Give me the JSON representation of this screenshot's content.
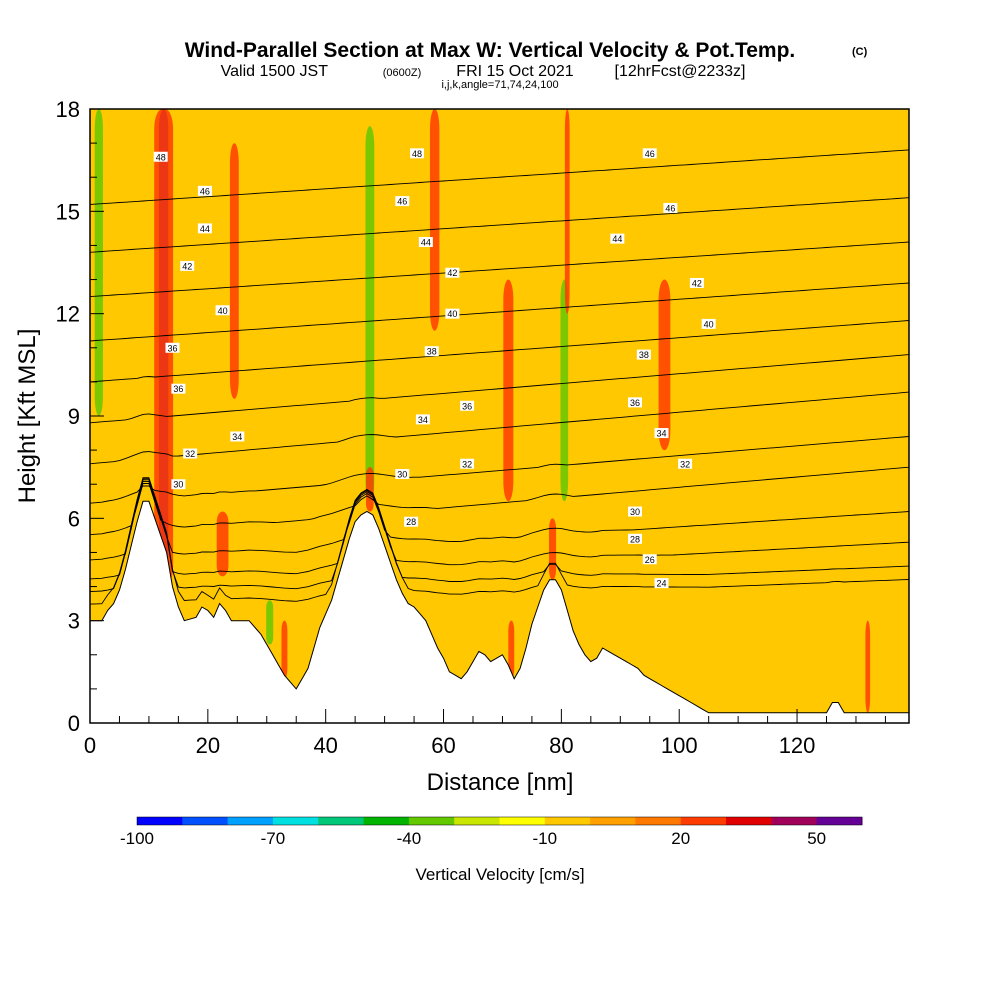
{
  "header": {
    "title": "Wind-Parallel Section at Max W: Vertical Velocity & Pot.Temp.",
    "title_mark": "(C)",
    "valid_prefix": "Valid 1500 JST",
    "valid_utc": "(0600Z)",
    "valid_date": "FRI 15 Oct 2021",
    "forecast": "[12hrFcst@2233z]",
    "params": "i,j,k,angle=71,74,24,100"
  },
  "chart_data": {
    "type": "heatmap",
    "title": "Wind-Parallel Section at Max W: Vertical Velocity & Pot.Temp.",
    "xlabel": "Distance [nm]",
    "ylabel": "Height [Kft MSL]",
    "xlim": [
      0,
      139
    ],
    "ylim": [
      0,
      18
    ],
    "x_ticks": [
      "0",
      "20",
      "40",
      "60",
      "80",
      "100",
      "120"
    ],
    "y_ticks": [
      "0",
      "3",
      "6",
      "9",
      "12",
      "15",
      "18"
    ],
    "grid": false,
    "colorbar": {
      "label": "Vertical Velocity [cm/s]",
      "tick_labels": [
        "-100",
        "-70",
        "-40",
        "-10",
        "20",
        "50"
      ],
      "tick_values": [
        -100,
        -70,
        -40,
        -10,
        20,
        50
      ],
      "min": -100,
      "step": 10,
      "colors": [
        "#0000ff",
        "#0050ff",
        "#00a0ff",
        "#00e0e0",
        "#00c878",
        "#00b400",
        "#64c800",
        "#c8e600",
        "#ffff00",
        "#ffc800",
        "#ffa000",
        "#ff7800",
        "#ff3c00",
        "#e10000",
        "#a0005a",
        "#640096"
      ]
    },
    "terrain_kft": [
      [
        0,
        3.0
      ],
      [
        2,
        3.0
      ],
      [
        3,
        3.3
      ],
      [
        4,
        3.5
      ],
      [
        5,
        3.9
      ],
      [
        6,
        4.5
      ],
      [
        7,
        5.2
      ],
      [
        8,
        5.9
      ],
      [
        9,
        6.5
      ],
      [
        10,
        6.5
      ],
      [
        11,
        6.0
      ],
      [
        12,
        5.5
      ],
      [
        13,
        5.0
      ],
      [
        14,
        4.0
      ],
      [
        15,
        3.4
      ],
      [
        16,
        3.0
      ],
      [
        18,
        3.1
      ],
      [
        19,
        3.4
      ],
      [
        20,
        3.3
      ],
      [
        21,
        3.1
      ],
      [
        22,
        3.5
      ],
      [
        23,
        3.3
      ],
      [
        24,
        3.0
      ],
      [
        27,
        3.0
      ],
      [
        28,
        2.8
      ],
      [
        29,
        2.6
      ],
      [
        30,
        2.3
      ],
      [
        31,
        2.0
      ],
      [
        32,
        1.7
      ],
      [
        33,
        1.4
      ],
      [
        34,
        1.2
      ],
      [
        35,
        1.0
      ],
      [
        36,
        1.3
      ],
      [
        37,
        1.6
      ],
      [
        38,
        2.2
      ],
      [
        39,
        2.8
      ],
      [
        40,
        3.2
      ],
      [
        41,
        3.6
      ],
      [
        42,
        4.2
      ],
      [
        43,
        4.8
      ],
      [
        44,
        5.4
      ],
      [
        45,
        5.9
      ],
      [
        46,
        6.1
      ],
      [
        47,
        6.2
      ],
      [
        48,
        6.1
      ],
      [
        49,
        5.7
      ],
      [
        50,
        5.2
      ],
      [
        51,
        4.7
      ],
      [
        52,
        4.2
      ],
      [
        53,
        3.8
      ],
      [
        54,
        3.5
      ],
      [
        55,
        3.4
      ],
      [
        56,
        3.2
      ],
      [
        57,
        3.0
      ],
      [
        58,
        2.6
      ],
      [
        59,
        2.2
      ],
      [
        60,
        1.9
      ],
      [
        61,
        1.5
      ],
      [
        62,
        1.4
      ],
      [
        63,
        1.3
      ],
      [
        64,
        1.5
      ],
      [
        65,
        1.8
      ],
      [
        66,
        2.1
      ],
      [
        67,
        2.0
      ],
      [
        68,
        1.8
      ],
      [
        69,
        1.9
      ],
      [
        70,
        2.0
      ],
      [
        71,
        1.7
      ],
      [
        72,
        1.3
      ],
      [
        73,
        1.6
      ],
      [
        74,
        2.2
      ],
      [
        75,
        2.9
      ],
      [
        76,
        3.4
      ],
      [
        77,
        3.9
      ],
      [
        78,
        4.2
      ],
      [
        79,
        4.2
      ],
      [
        80,
        3.9
      ],
      [
        81,
        3.3
      ],
      [
        82,
        2.7
      ],
      [
        83,
        2.3
      ],
      [
        84,
        2.0
      ],
      [
        85,
        1.8
      ],
      [
        86,
        1.9
      ],
      [
        87,
        2.2
      ],
      [
        88,
        2.1
      ],
      [
        89,
        2.0
      ],
      [
        90,
        1.9
      ],
      [
        91,
        1.8
      ],
      [
        92,
        1.7
      ],
      [
        93,
        1.6
      ],
      [
        94,
        1.4
      ],
      [
        95,
        1.3
      ],
      [
        96,
        1.2
      ],
      [
        97,
        1.1
      ],
      [
        98,
        1.0
      ],
      [
        99,
        0.9
      ],
      [
        100,
        0.8
      ],
      [
        101,
        0.7
      ],
      [
        102,
        0.6
      ],
      [
        103,
        0.5
      ],
      [
        104,
        0.4
      ],
      [
        105,
        0.3
      ],
      [
        125,
        0.3
      ],
      [
        126,
        0.6
      ],
      [
        127,
        0.6
      ],
      [
        128,
        0.3
      ],
      [
        139,
        0.3
      ]
    ],
    "velocity_features": [
      {
        "x": 12.5,
        "w": 1.6,
        "y0": 4.5,
        "y1": 18,
        "v": 50
      },
      {
        "x": 12.5,
        "w": 3.2,
        "y0": 4.0,
        "y1": 18,
        "v": 20
      },
      {
        "x": 24.5,
        "w": 1.5,
        "y0": 9.5,
        "y1": 17.0,
        "v": 20
      },
      {
        "x": 22.5,
        "w": 2.0,
        "y0": 4.3,
        "y1": 6.2,
        "v": 20
      },
      {
        "x": 1.5,
        "w": 1.4,
        "y0": 9.0,
        "y1": 18,
        "v": -40
      },
      {
        "x": 3.5,
        "w": 1.0,
        "y0": 6.0,
        "y1": 18,
        "v": -10
      },
      {
        "x": 30.5,
        "w": 1.2,
        "y0": 2.3,
        "y1": 3.6,
        "v": -40
      },
      {
        "x": 33.0,
        "w": 1.0,
        "y0": 1.3,
        "y1": 3.0,
        "v": 20
      },
      {
        "x": 47.5,
        "w": 1.5,
        "y0": 6.5,
        "y1": 17.5,
        "v": -40
      },
      {
        "x": 47.5,
        "w": 1.3,
        "y0": 6.2,
        "y1": 7.5,
        "v": 20
      },
      {
        "x": 58.5,
        "w": 1.6,
        "y0": 11.5,
        "y1": 18,
        "v": 20
      },
      {
        "x": 71.0,
        "w": 1.7,
        "y0": 6.5,
        "y1": 13.0,
        "v": 20
      },
      {
        "x": 71.5,
        "w": 1.0,
        "y0": 1.3,
        "y1": 3.0,
        "v": 20
      },
      {
        "x": 75.5,
        "w": 1.0,
        "y0": 12.0,
        "y1": 18,
        "v": -10
      },
      {
        "x": 80.5,
        "w": 1.3,
        "y0": 6.5,
        "y1": 13.0,
        "v": -40
      },
      {
        "x": 78.5,
        "w": 1.2,
        "y0": 4.2,
        "y1": 6.0,
        "v": 20
      },
      {
        "x": 81.0,
        "w": 0.8,
        "y0": 12.0,
        "y1": 18,
        "v": 20
      },
      {
        "x": 97.5,
        "w": 2.0,
        "y0": 8.0,
        "y1": 13.0,
        "v": 20
      },
      {
        "x": 132.0,
        "w": 0.8,
        "y0": 0.3,
        "y1": 3.0,
        "v": 20
      }
    ],
    "theta_isolines": [
      {
        "level": 24,
        "y_start": 3.2,
        "y_end": 4.2
      },
      {
        "level": 26,
        "y_start": 3.6,
        "y_end": 4.6
      },
      {
        "level": 28,
        "y_start": 4.0,
        "y_end": 5.3
      },
      {
        "level": 30,
        "y_start": 4.6,
        "y_end": 6.2
      },
      {
        "level": 32,
        "y_start": 5.4,
        "y_end": 7.5
      },
      {
        "level": 34,
        "y_start": 6.4,
        "y_end": 8.4
      },
      {
        "level": 36,
        "y_start": 7.6,
        "y_end": 9.7
      },
      {
        "level": 38,
        "y_start": 8.8,
        "y_end": 10.8
      },
      {
        "level": 40,
        "y_start": 10.0,
        "y_end": 11.8
      },
      {
        "level": 42,
        "y_start": 11.2,
        "y_end": 12.9
      },
      {
        "level": 44,
        "y_start": 12.5,
        "y_end": 14.1
      },
      {
        "level": 46,
        "y_start": 13.8,
        "y_end": 15.4
      },
      {
        "level": 48,
        "y_start": 15.2,
        "y_end": 16.8
      }
    ],
    "theta_labels": [
      {
        "text": "48",
        "x": 12,
        "y": 16.6
      },
      {
        "text": "46",
        "x": 19.5,
        "y": 15.6
      },
      {
        "text": "44",
        "x": 19.5,
        "y": 14.5
      },
      {
        "text": "42",
        "x": 16.5,
        "y": 13.4
      },
      {
        "text": "40",
        "x": 22.5,
        "y": 12.1
      },
      {
        "text": "36",
        "x": 14,
        "y": 11.0
      },
      {
        "text": "36",
        "x": 15,
        "y": 9.8
      },
      {
        "text": "34",
        "x": 25,
        "y": 8.4
      },
      {
        "text": "32",
        "x": 17,
        "y": 7.9
      },
      {
        "text": "30",
        "x": 15,
        "y": 7.0
      },
      {
        "text": "48",
        "x": 55.5,
        "y": 16.7
      },
      {
        "text": "46",
        "x": 53,
        "y": 15.3
      },
      {
        "text": "44",
        "x": 57,
        "y": 14.1
      },
      {
        "text": "42",
        "x": 61.5,
        "y": 13.2
      },
      {
        "text": "40",
        "x": 61.5,
        "y": 12.0
      },
      {
        "text": "38",
        "x": 58,
        "y": 10.9
      },
      {
        "text": "36",
        "x": 64,
        "y": 9.3
      },
      {
        "text": "34",
        "x": 56.5,
        "y": 8.9
      },
      {
        "text": "32",
        "x": 64,
        "y": 7.6
      },
      {
        "text": "30",
        "x": 53,
        "y": 7.3
      },
      {
        "text": "28",
        "x": 54.5,
        "y": 5.9
      },
      {
        "text": "46",
        "x": 95,
        "y": 16.7
      },
      {
        "text": "46",
        "x": 98.5,
        "y": 15.1
      },
      {
        "text": "44",
        "x": 89.5,
        "y": 14.2
      },
      {
        "text": "42",
        "x": 103,
        "y": 12.9
      },
      {
        "text": "40",
        "x": 105,
        "y": 11.7
      },
      {
        "text": "38",
        "x": 94,
        "y": 10.8
      },
      {
        "text": "36",
        "x": 92.5,
        "y": 9.4
      },
      {
        "text": "34",
        "x": 97,
        "y": 8.5
      },
      {
        "text": "32",
        "x": 101,
        "y": 7.6
      },
      {
        "text": "30",
        "x": 92.5,
        "y": 6.2
      },
      {
        "text": "28",
        "x": 92.5,
        "y": 5.4
      },
      {
        "text": "26",
        "x": 95,
        "y": 4.8
      },
      {
        "text": "24",
        "x": 97,
        "y": 4.1
      }
    ]
  }
}
